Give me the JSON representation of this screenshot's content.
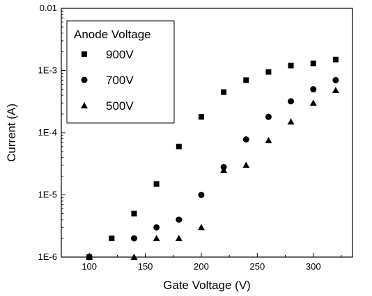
{
  "chart_data": {
    "type": "scatter",
    "xlabel": "Gate Voltage (V)",
    "ylabel": "Current (A)",
    "xlim": [
      75,
      335
    ],
    "ylim": [
      1e-06,
      0.01
    ],
    "yscale": "log",
    "x_ticks": [
      100,
      150,
      200,
      250,
      300
    ],
    "x_tick_labels": [
      "100",
      "150",
      "200",
      "250",
      "300"
    ],
    "y_ticks": [
      1e-06,
      1e-05,
      0.0001,
      0.001,
      0.01
    ],
    "y_tick_labels": [
      "1E-6",
      "1E-5",
      "1E-4",
      "1E-3",
      "0.01"
    ],
    "legend": {
      "title": "Anode Voltage",
      "position": "top-left"
    },
    "series": [
      {
        "name": "900V",
        "marker": "square",
        "x": [
          100,
          120,
          140,
          160,
          180,
          200,
          220,
          240,
          260,
          280,
          300,
          320
        ],
        "y": [
          1e-06,
          2e-06,
          5e-06,
          1.5e-05,
          6e-05,
          0.00018,
          0.00045,
          0.0007,
          0.00095,
          0.0012,
          0.0013,
          0.0015
        ]
      },
      {
        "name": "700V",
        "marker": "circle",
        "x": [
          100,
          140,
          160,
          180,
          200,
          220,
          240,
          260,
          280,
          300,
          320
        ],
        "y": [
          1e-06,
          2e-06,
          3e-06,
          4e-06,
          1e-05,
          2.8e-05,
          7.8e-05,
          0.00018,
          0.00032,
          0.0005,
          0.0007
        ]
      },
      {
        "name": "500V",
        "marker": "triangle",
        "x": [
          100,
          140,
          160,
          180,
          200,
          220,
          240,
          260,
          280,
          300,
          320
        ],
        "y": [
          1e-06,
          1e-06,
          2e-06,
          2e-06,
          3e-06,
          2.5e-05,
          3e-05,
          7.5e-05,
          0.00015,
          0.0003,
          0.00048
        ]
      }
    ]
  }
}
